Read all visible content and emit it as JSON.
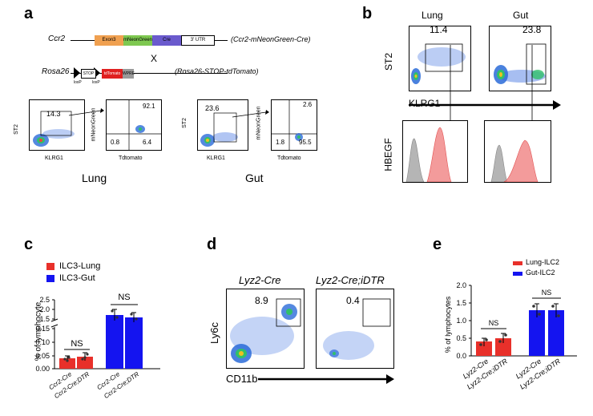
{
  "panels": {
    "a": {
      "letter": "a",
      "ccr2_label": "Ccr2",
      "ccr2_segments": [
        "Exon3",
        "mNeonGreen",
        "Cre",
        "3' UTR"
      ],
      "ccr2_allele": "(Ccr2-mNeonGreen-Cre)",
      "cross": "X",
      "rosa_label": "Rosa26",
      "rosa_segments": [
        "STOP",
        "tdTomato",
        "WPRE"
      ],
      "loxp1": "loxP",
      "loxp2": "loxP",
      "rosa_allele": "(Rosa26-STOP-tdTomato)",
      "lung": {
        "gate": "14.3",
        "q_ur": "92.1",
        "q_ll": "0.8",
        "q_lr": "6.4",
        "y1": "ST2",
        "x1": "KLRG1",
        "y2": "mNeonGreen",
        "x2": "Tdtomato",
        "title": "Lung"
      },
      "gut": {
        "gate": "23.6",
        "q_ur": "2.6",
        "q_ll": "1.8",
        "q_lr": "95.5",
        "y1": "ST2",
        "x1": "KLRG1",
        "y2": "mNeonGreen",
        "x2": "Tdtomato",
        "title": "Gut"
      }
    },
    "b": {
      "letter": "b",
      "col1": "Lung",
      "col2": "Gut",
      "gate_lung": "11.4",
      "gate_gut": "23.8",
      "ylabel_top": "ST2",
      "xlabel": "KLRG1",
      "ylabel_bottom": "HBEGF"
    },
    "c": {
      "letter": "c",
      "legend": [
        "ILC3-Lung",
        "ILC3-Gut"
      ],
      "ylabel": "% of lymphocyte",
      "yticks_upper": [
        "2.5",
        "2.0",
        "1.5"
      ],
      "yticks_lower": [
        "0.15",
        "0.10",
        "0.05",
        "0.00"
      ],
      "ns1": "NS",
      "ns2": "NS",
      "xticks": [
        "Ccr2-Cre",
        "Ccr2-Cre;DTR",
        "Ccr2-Cre",
        "Ccr2-Cre;DTR"
      ]
    },
    "d": {
      "letter": "d",
      "title1": "Lyz2-Cre",
      "title2": "Lyz2-Cre;iDTR",
      "gate1": "8.9",
      "gate2": "0.4",
      "ylabel": "Ly6c",
      "xlabel": "CD11b"
    },
    "e": {
      "letter": "e",
      "legend": [
        "Lung-ILC2",
        "Gut-ILC2"
      ],
      "ylabel": "% of lymphocytes",
      "yticks": [
        "2.0",
        "1.5",
        "1.0",
        "0.5",
        "0.0"
      ],
      "ns1": "NS",
      "ns2": "NS",
      "xticks": [
        "Lyz2-Cre",
        "Lyz2-Cre;iDTR",
        "Lyz2-Cre",
        "Lyz2-Cre;iDTR"
      ]
    }
  },
  "colors": {
    "red": "#e8302a",
    "blue": "#1414f0",
    "exon": "#f0a050",
    "neon": "#7ec850",
    "cre": "#6a5acd",
    "tdtomato": "#e02020"
  },
  "chart_data": [
    {
      "type": "bar",
      "categories": [
        "Ccr2-Cre",
        "Ccr2-Cre;DTR",
        "Ccr2-Cre",
        "Ccr2-Cre;DTR"
      ],
      "series": [
        {
          "name": "ILC3-Lung",
          "values": [
            0.04,
            0.045,
            null,
            null
          ]
        },
        {
          "name": "ILC3-Gut",
          "values": [
            null,
            null,
            1.8,
            1.68
          ]
        }
      ],
      "ylabel": "% of lymphocyte",
      "ylim": [
        0,
        2.5
      ]
    },
    {
      "type": "bar",
      "categories": [
        "Lyz2-Cre",
        "Lyz2-Cre;iDTR",
        "Lyz2-Cre",
        "Lyz2-Cre;iDTR"
      ],
      "series": [
        {
          "name": "Lung-ILC2",
          "values": [
            0.42,
            0.5,
            null,
            null
          ]
        },
        {
          "name": "Gut-ILC2",
          "values": [
            null,
            null,
            1.3,
            1.3
          ]
        }
      ],
      "ylabel": "% of lymphocytes",
      "ylim": [
        0,
        2.0
      ]
    }
  ]
}
